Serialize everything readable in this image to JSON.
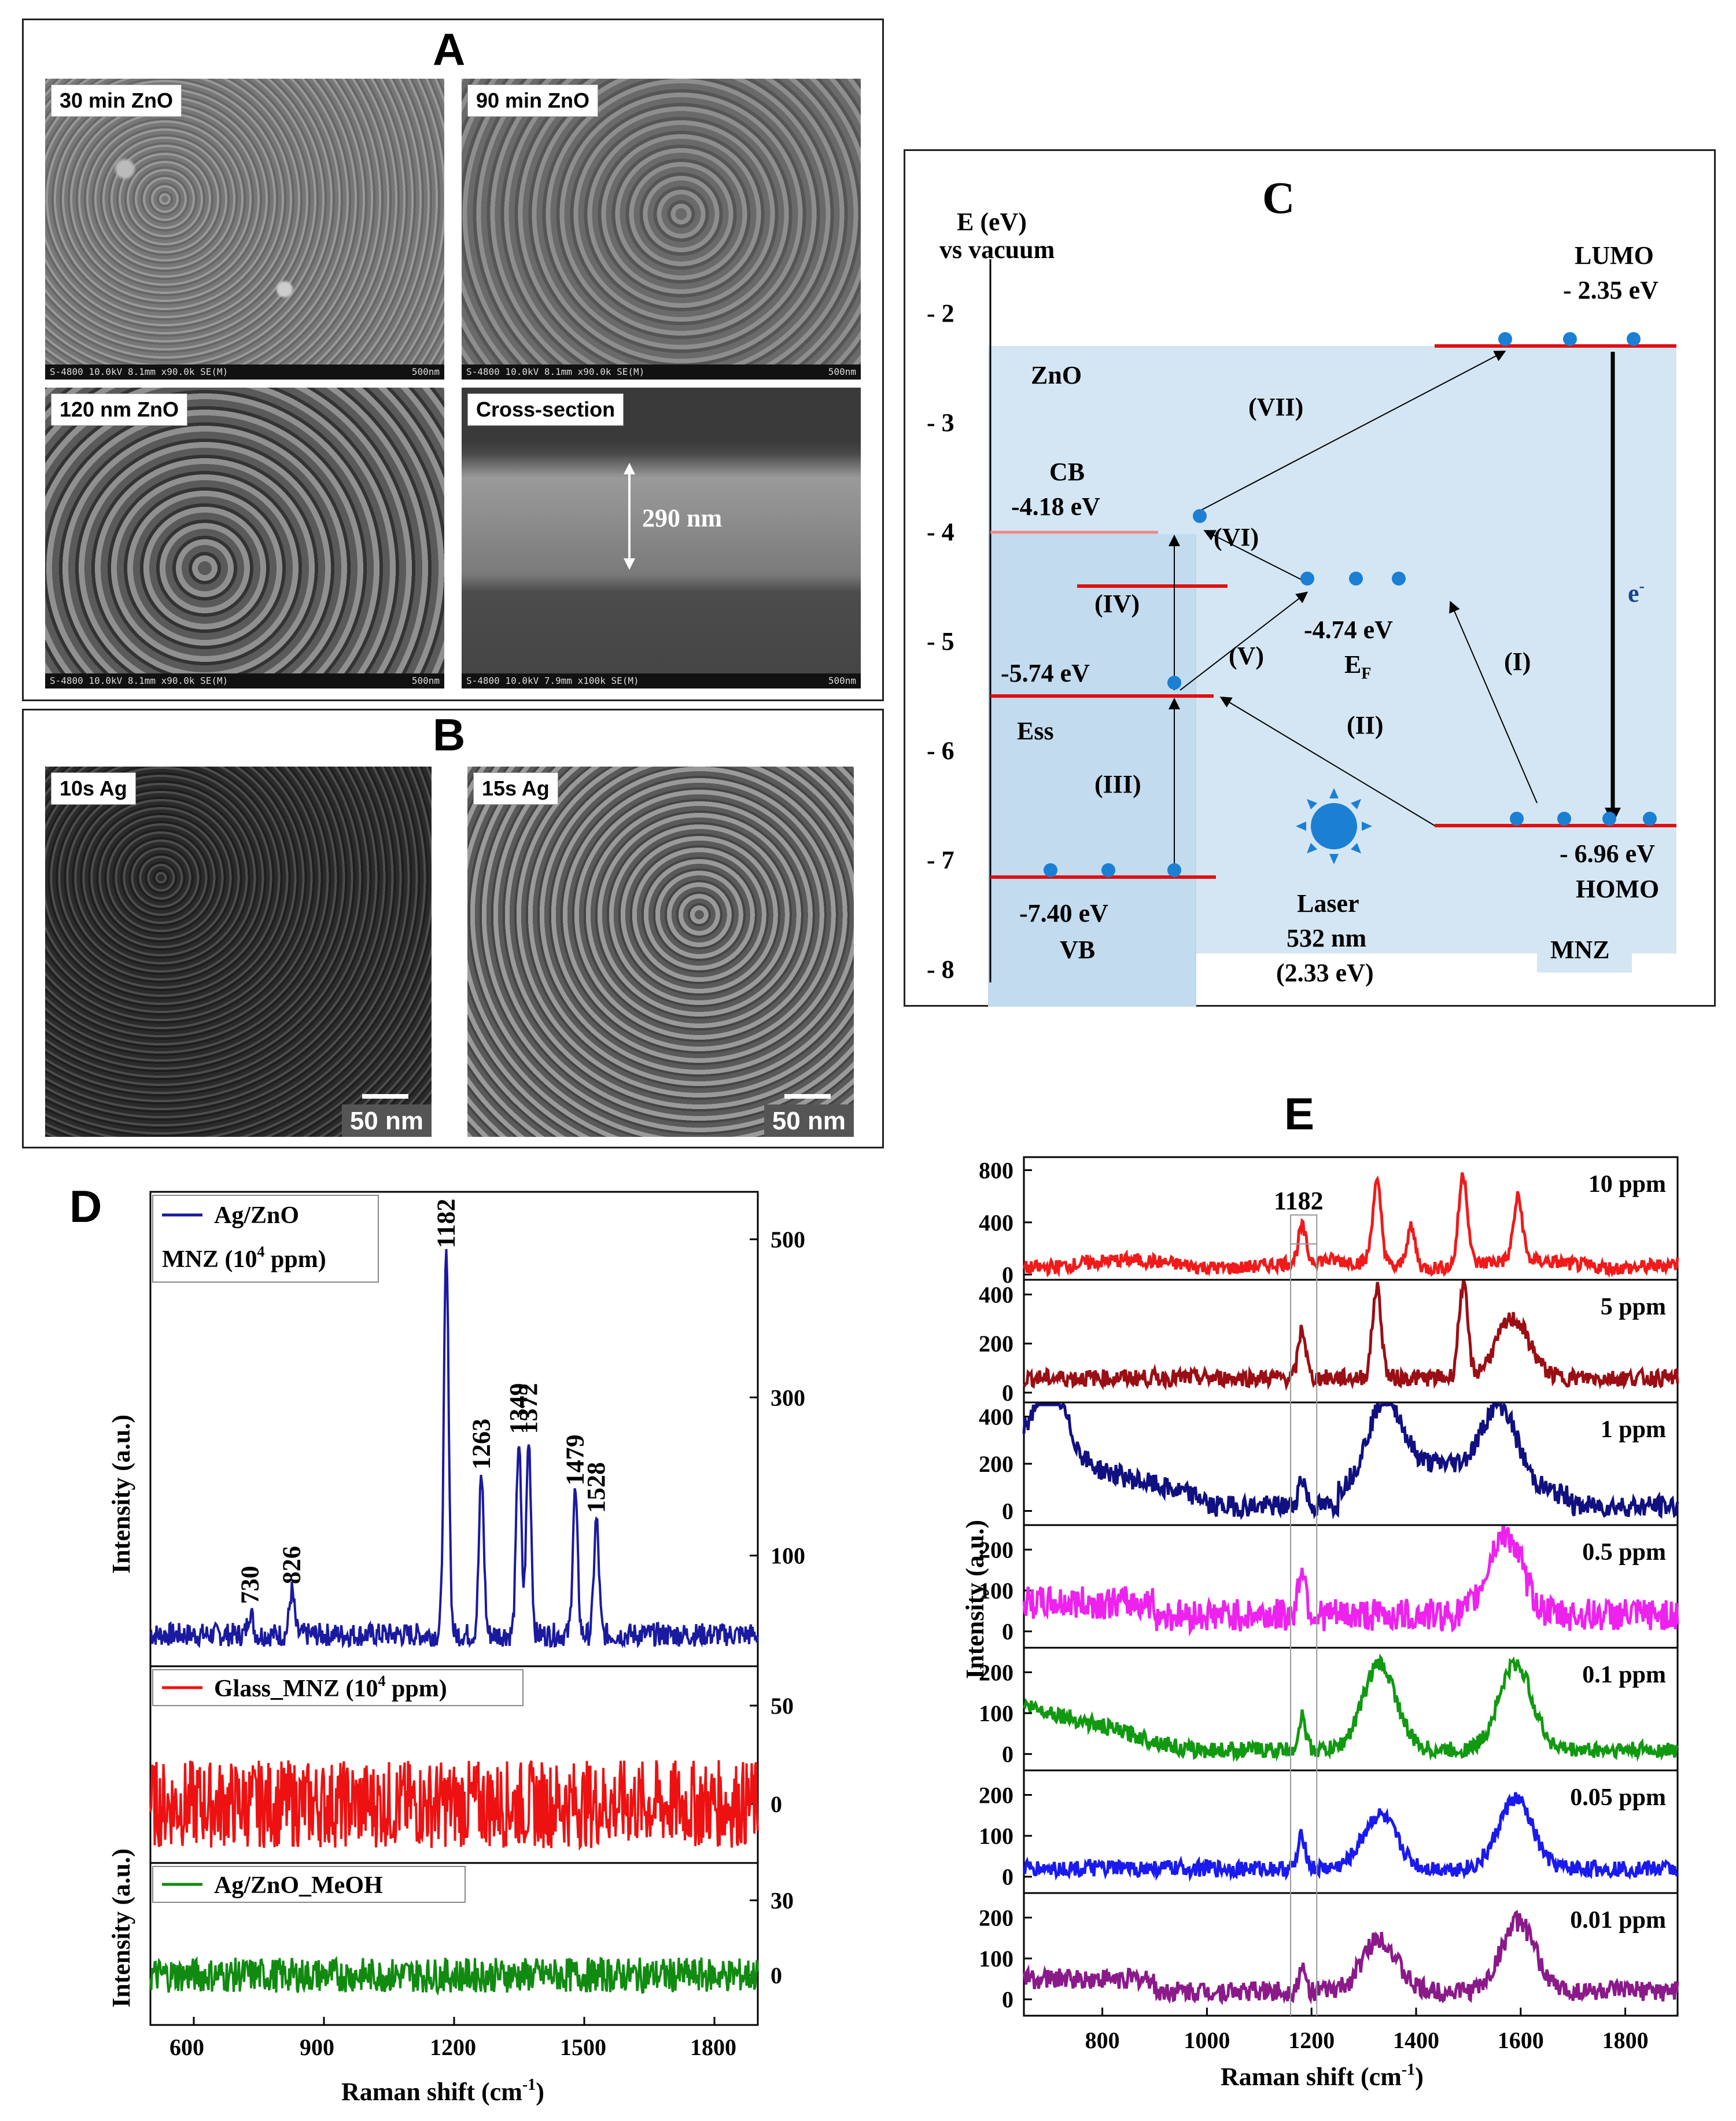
{
  "panelA": {
    "label": "A",
    "tiles": [
      {
        "tag": "30 min ZnO",
        "info": "S-4800 10.0kV 8.1mm x90.0k SE(M)",
        "scale": "500nm"
      },
      {
        "tag": "90 min ZnO",
        "info": "S-4800 10.0kV 8.1mm x90.0k SE(M)",
        "scale": "500nm"
      },
      {
        "tag": "120 nm ZnO",
        "info": "S-4800 10.0kV 8.1mm x90.0k SE(M)",
        "scale": "500nm"
      },
      {
        "tag": "Cross-section",
        "info": "S-4800 10.0kV 7.9mm x100k SE(M)",
        "scale": "500nm",
        "thickness": "290 nm"
      }
    ]
  },
  "panelB": {
    "label": "B",
    "tiles": [
      {
        "tag": "10s Ag",
        "scale": "50 nm"
      },
      {
        "tag": "15s Ag",
        "scale": "50 nm"
      }
    ]
  },
  "panelC": {
    "label": "C",
    "axis_title_1": "E (eV)",
    "axis_title_2": "vs vacuum",
    "ticks": [
      "- 2",
      "- 3",
      "- 4",
      "- 5",
      "- 6",
      "- 7",
      "- 8"
    ],
    "zno": "ZnO",
    "lumo": "LUMO",
    "lumo_val": "- 2.35 eV",
    "homo": "HOMO",
    "homo_val": "- 6.96 eV",
    "cb": "CB",
    "cb_val": "-4.18 eV",
    "ess_val": "-5.74 eV",
    "ess": "Ess",
    "ef_val": "-4.74 eV",
    "ef": "E",
    "ef_sub": "F",
    "vb_val": "-7.40 eV",
    "vb": "VB",
    "laser1": "Laser",
    "laser2": "532 nm",
    "laser3": "(2.33 eV)",
    "mnz": "MNZ",
    "electron": "e",
    "electron_sup": "-",
    "transitions": [
      "(I)",
      "(II)",
      "(III)",
      "(IV)",
      "(V)",
      "(VI)",
      "(VII)"
    ]
  },
  "panelD": {
    "label": "D",
    "xlabel": "Raman shift (cm",
    "xlabel_sup": "-1",
    "xlabel_end": ")",
    "ylabel": "Intensity (a.u.)",
    "legend1": "Ag/ZnO",
    "legend1b": "MNZ (10",
    "legend1b_sup": "4",
    "legend1b_end": " ppm)",
    "legend2": "Glass_MNZ (10",
    "legend2_sup": "4",
    "legend2_end": " ppm)",
    "legend3": "Ag/ZnO_MeOH",
    "peaks": [
      "730",
      "826",
      "1182",
      "1263",
      "1349",
      "1372",
      "1479",
      "1528"
    ]
  },
  "panelE": {
    "label": "E",
    "xlabel": "Raman shift (cm",
    "xlabel_sup": "-1",
    "xlabel_end": ")",
    "ylabel": "Intensity (a.u.)",
    "peak_label": "1182",
    "concentrations": [
      "10 ppm",
      "5 ppm",
      "1 ppm",
      "0.5 ppm",
      "0.1 ppm",
      "0.05 ppm",
      "0.01 ppm"
    ]
  },
  "chart_data": [
    {
      "type": "line",
      "panel": "D",
      "x_range": [
        500,
        1900
      ],
      "x_ticks": [
        600,
        900,
        1200,
        1500,
        1800
      ],
      "subplots": [
        {
          "series": "Ag/ZnO",
          "color": "#1a1aa0",
          "y_ticks": [
            100,
            300,
            500
          ],
          "peaks": [
            {
              "x": 730,
              "y": 30
            },
            {
              "x": 826,
              "y": 55
            },
            {
              "x": 1182,
              "y": 480
            },
            {
              "x": 1263,
              "y": 200
            },
            {
              "x": 1349,
              "y": 245
            },
            {
              "x": 1372,
              "y": 245
            },
            {
              "x": 1479,
              "y": 180
            },
            {
              "x": 1528,
              "y": 145
            }
          ]
        },
        {
          "series": "Glass_MNZ (10^4 ppm)",
          "color": "#ee1111",
          "y_ticks": [
            0,
            50
          ]
        },
        {
          "series": "Ag/ZnO_MeOH",
          "color": "#118a11",
          "y_ticks": [
            0,
            30
          ]
        }
      ]
    },
    {
      "type": "line",
      "panel": "E",
      "x_range": [
        650,
        1900
      ],
      "x_ticks": [
        800,
        1000,
        1200,
        1400,
        1600,
        1800
      ],
      "subplots": [
        {
          "series": "10 ppm",
          "color": "#f01a1a",
          "y_ticks": [
            0,
            400,
            800
          ],
          "peaks": [
            {
              "x": 1182,
              "y": 260
            },
            {
              "x": 1325,
              "y": 620
            },
            {
              "x": 1390,
              "y": 300
            },
            {
              "x": 1490,
              "y": 700
            },
            {
              "x": 1595,
              "y": 480
            }
          ]
        },
        {
          "series": "5 ppm",
          "color": "#9a0e14",
          "y_ticks": [
            0,
            200,
            400
          ],
          "peaks": [
            {
              "x": 1182,
              "y": 200
            },
            {
              "x": 1325,
              "y": 370
            },
            {
              "x": 1490,
              "y": 380
            },
            {
              "x": 1585,
              "y": 240
            }
          ]
        },
        {
          "series": "1 ppm",
          "color": "#101080",
          "y_ticks": [
            0,
            200,
            400
          ],
          "peaks": [
            {
              "x": 700,
              "y": 300
            },
            {
              "x": 1182,
              "y": 120
            },
            {
              "x": 1340,
              "y": 330
            },
            {
              "x": 1560,
              "y": 300
            }
          ]
        },
        {
          "series": "0.5 ppm",
          "color": "#ee22ee",
          "y_ticks": [
            0,
            100,
            200
          ],
          "peaks": [
            {
              "x": 1182,
              "y": 120
            },
            {
              "x": 1570,
              "y": 200
            }
          ]
        },
        {
          "series": "0.1 ppm",
          "color": "#119911",
          "y_ticks": [
            0,
            100,
            200
          ],
          "peaks": [
            {
              "x": 1182,
              "y": 80
            },
            {
              "x": 1330,
              "y": 210
            },
            {
              "x": 1590,
              "y": 210
            }
          ]
        },
        {
          "series": "0.05 ppm",
          "color": "#1a1aee",
          "y_ticks": [
            0,
            100,
            200
          ],
          "peaks": [
            {
              "x": 1182,
              "y": 80
            },
            {
              "x": 1330,
              "y": 130
            },
            {
              "x": 1590,
              "y": 170
            }
          ]
        },
        {
          "series": "0.01 ppm",
          "color": "#8a1a8a",
          "y_ticks": [
            0,
            100,
            200
          ],
          "peaks": [
            {
              "x": 1182,
              "y": 50
            },
            {
              "x": 1330,
              "y": 130
            },
            {
              "x": 1595,
              "y": 170
            }
          ]
        }
      ]
    }
  ]
}
